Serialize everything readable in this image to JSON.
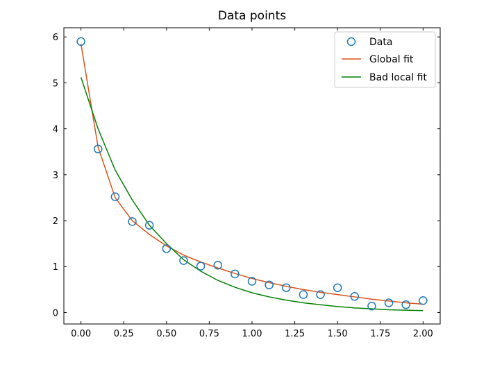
{
  "chart_data": {
    "type": "line",
    "title": "Data points",
    "xlabel": "",
    "ylabel": "",
    "xlim": [
      -0.1,
      2.1
    ],
    "ylim": [
      -0.25,
      6.2
    ],
    "xticks": [
      0.0,
      0.25,
      0.5,
      0.75,
      1.0,
      1.25,
      1.5,
      1.75,
      2.0
    ],
    "xtick_labels": [
      "0.00",
      "0.25",
      "0.50",
      "0.75",
      "1.00",
      "1.25",
      "1.50",
      "1.75",
      "2.00"
    ],
    "yticks": [
      0,
      1,
      2,
      3,
      4,
      5,
      6
    ],
    "ytick_labels": [
      "0",
      "1",
      "2",
      "3",
      "4",
      "5",
      "6"
    ],
    "grid": false,
    "legend_position": "top-right",
    "x": [
      0.0,
      0.1,
      0.2,
      0.3,
      0.4,
      0.5,
      0.6,
      0.7,
      0.8,
      0.9,
      1.0,
      1.1,
      1.2,
      1.3,
      1.4,
      1.5,
      1.6,
      1.7,
      1.8,
      1.9,
      2.0
    ],
    "series": [
      {
        "name": "Data",
        "kind": "scatter",
        "color": "#1f77b4",
        "values": [
          5.9,
          3.56,
          2.52,
          1.98,
          1.9,
          1.39,
          1.13,
          1.01,
          1.03,
          0.84,
          0.68,
          0.6,
          0.54,
          0.39,
          0.39,
          0.54,
          0.35,
          0.14,
          0.21,
          0.17,
          0.26
        ]
      },
      {
        "name": "Global fit",
        "kind": "line",
        "color": "#d95319",
        "values": [
          5.85,
          3.6,
          2.5,
          2.0,
          1.7,
          1.45,
          1.25,
          1.1,
          0.97,
          0.85,
          0.74,
          0.65,
          0.57,
          0.5,
          0.44,
          0.39,
          0.34,
          0.29,
          0.25,
          0.21,
          0.18
        ]
      },
      {
        "name": "Bad local fit",
        "kind": "line",
        "color": "#008000",
        "values": [
          5.12,
          4.0,
          3.1,
          2.45,
          1.9,
          1.5,
          1.15,
          0.9,
          0.7,
          0.55,
          0.43,
          0.34,
          0.27,
          0.21,
          0.17,
          0.13,
          0.1,
          0.08,
          0.06,
          0.05,
          0.04
        ]
      }
    ]
  }
}
